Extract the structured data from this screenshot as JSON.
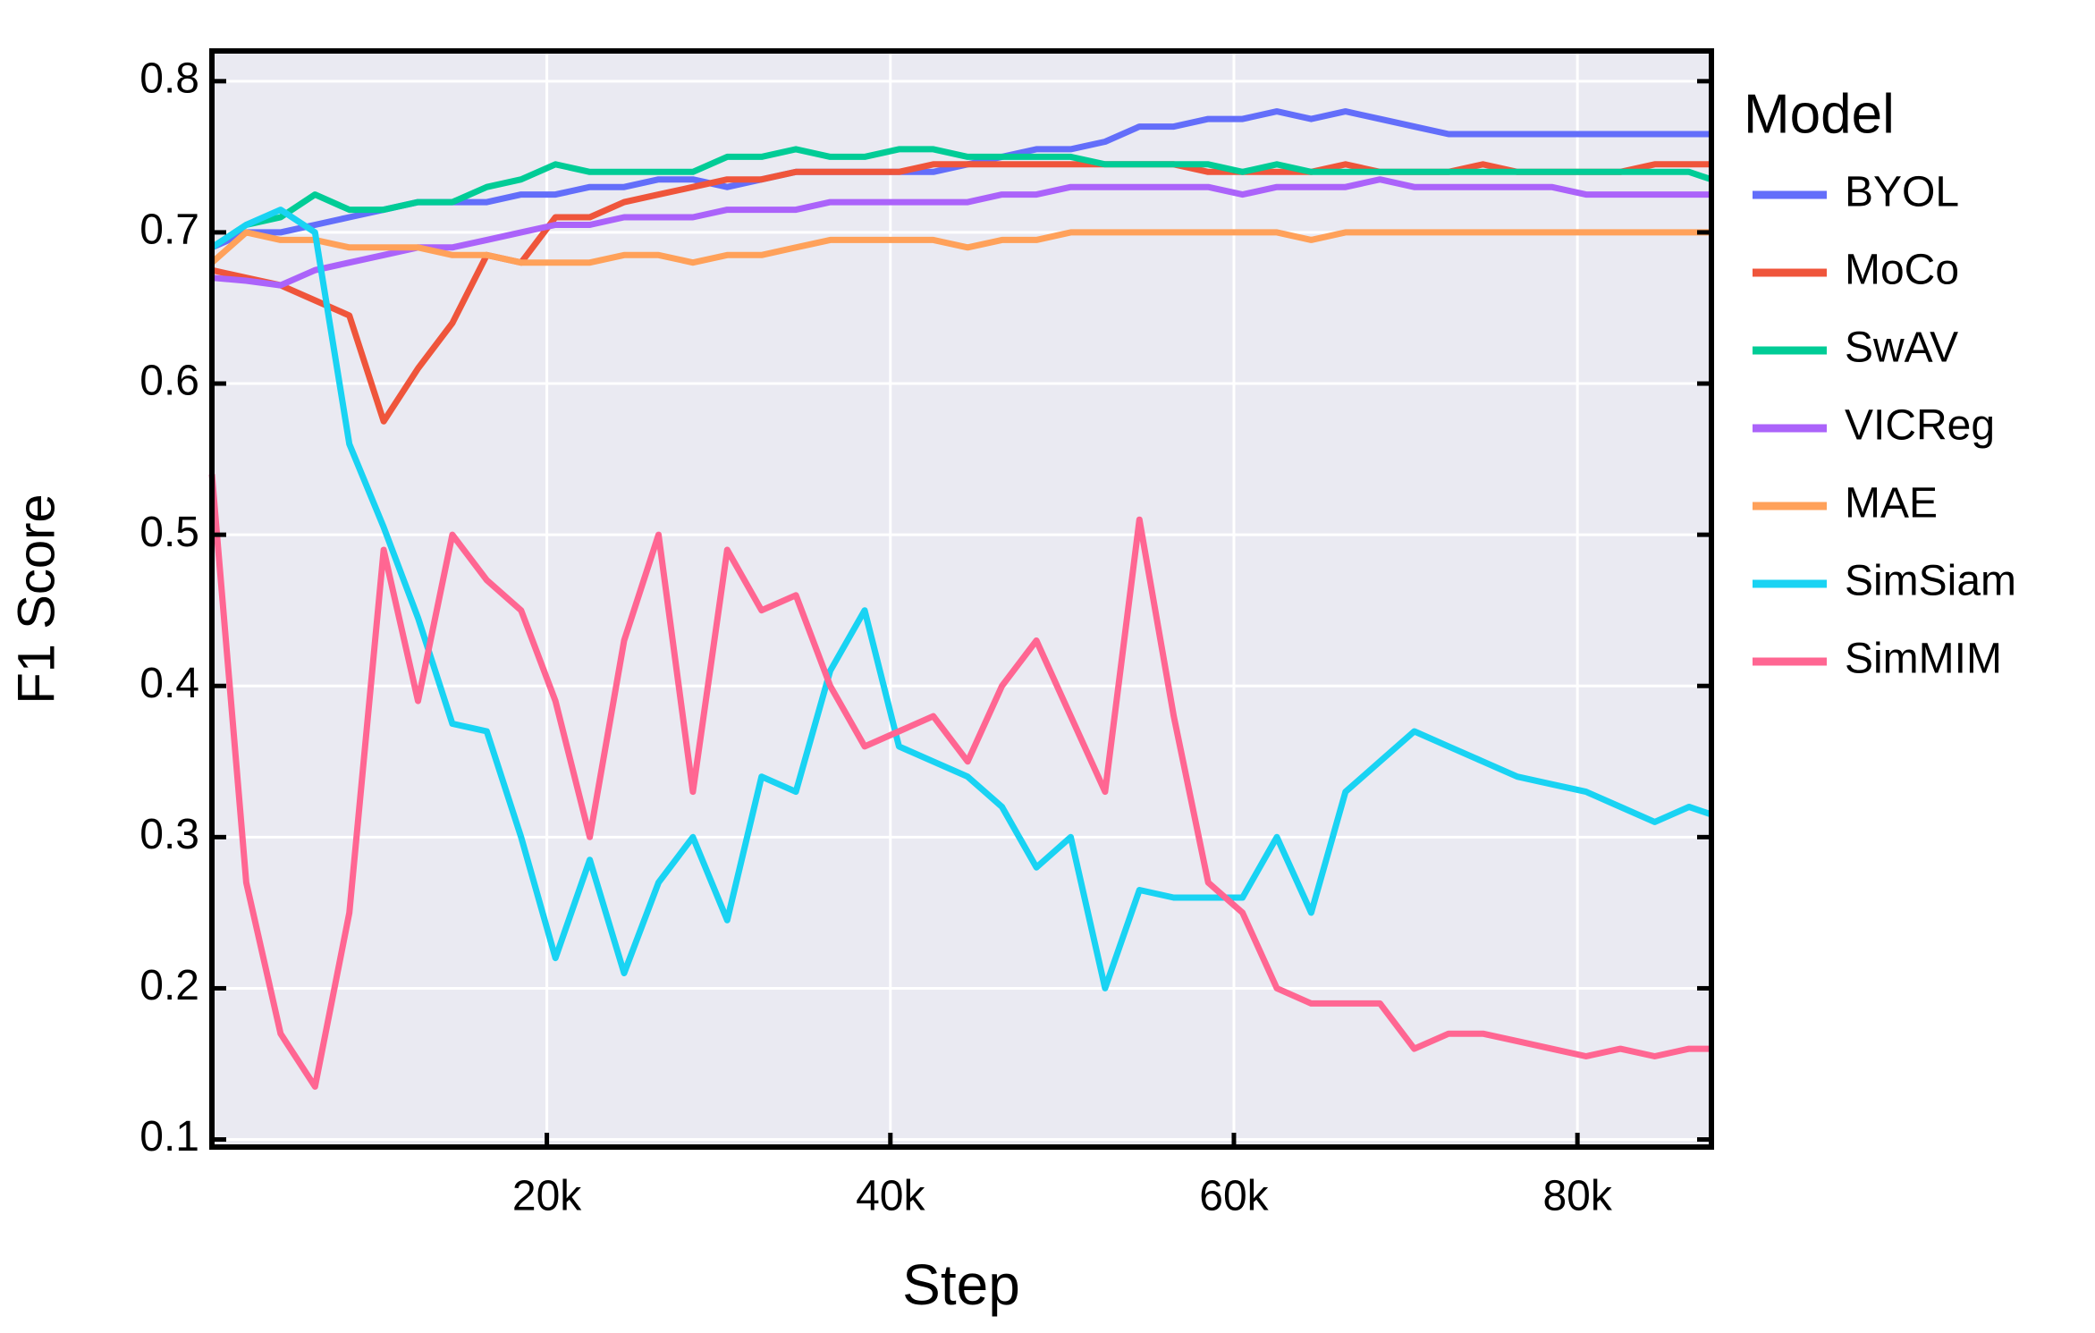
{
  "chart_data": {
    "type": "line",
    "xlabel": "Step",
    "ylabel": "F1 Score",
    "legend_title": "Model",
    "legend": "right",
    "grid": true,
    "xlim": [
      500,
      87800
    ],
    "ylim": [
      0.095,
      0.82
    ],
    "xticks": [
      {
        "value": 20000,
        "label": "20k"
      },
      {
        "value": 40000,
        "label": "40k"
      },
      {
        "value": 60000,
        "label": "60k"
      },
      {
        "value": 80000,
        "label": "80k"
      }
    ],
    "yticks": [
      0.1,
      0.2,
      0.3,
      0.4,
      0.5,
      0.6,
      0.7,
      0.8
    ],
    "x": [
      500,
      2500,
      4500,
      6500,
      8500,
      10500,
      12500,
      14500,
      16500,
      18500,
      20500,
      22500,
      24500,
      26500,
      28500,
      30500,
      32500,
      34500,
      36500,
      38500,
      40500,
      42500,
      44500,
      46500,
      48500,
      50500,
      52500,
      54500,
      56500,
      58500,
      60500,
      62500,
      64500,
      66500,
      68500,
      70500,
      72500,
      74500,
      76500,
      78500,
      80500,
      82500,
      84500,
      86500,
      87800
    ],
    "series": [
      {
        "name": "BYOL",
        "color": "#636efa",
        "values": [
          0.69,
          0.7,
          0.7,
          0.705,
          0.71,
          0.715,
          0.72,
          0.72,
          0.72,
          0.725,
          0.725,
          0.73,
          0.73,
          0.735,
          0.735,
          0.73,
          0.735,
          0.74,
          0.74,
          0.74,
          0.74,
          0.74,
          0.745,
          0.75,
          0.755,
          0.755,
          0.76,
          0.77,
          0.77,
          0.775,
          0.775,
          0.78,
          0.775,
          0.78,
          0.775,
          0.77,
          0.765,
          0.765,
          0.765,
          0.765,
          0.765,
          0.765,
          0.765,
          0.765,
          0.765
        ]
      },
      {
        "name": "MoCo",
        "color": "#ef553b",
        "values": [
          0.675,
          0.67,
          0.665,
          0.655,
          0.645,
          0.575,
          0.61,
          0.64,
          0.685,
          0.68,
          0.71,
          0.71,
          0.72,
          0.725,
          0.73,
          0.735,
          0.735,
          0.74,
          0.74,
          0.74,
          0.74,
          0.745,
          0.745,
          0.745,
          0.745,
          0.745,
          0.745,
          0.745,
          0.745,
          0.74,
          0.74,
          0.74,
          0.74,
          0.745,
          0.74,
          0.74,
          0.74,
          0.745,
          0.74,
          0.74,
          0.74,
          0.74,
          0.745,
          0.745,
          0.745
        ]
      },
      {
        "name": "SwAV",
        "color": "#00cc96",
        "values": [
          0.69,
          0.705,
          0.71,
          0.725,
          0.715,
          0.715,
          0.72,
          0.72,
          0.73,
          0.735,
          0.745,
          0.74,
          0.74,
          0.74,
          0.74,
          0.75,
          0.75,
          0.755,
          0.75,
          0.75,
          0.755,
          0.755,
          0.75,
          0.75,
          0.75,
          0.75,
          0.745,
          0.745,
          0.745,
          0.745,
          0.74,
          0.745,
          0.74,
          0.74,
          0.74,
          0.74,
          0.74,
          0.74,
          0.74,
          0.74,
          0.74,
          0.74,
          0.74,
          0.74,
          0.735
        ]
      },
      {
        "name": "VICReg",
        "color": "#ab63fa",
        "values": [
          0.67,
          0.668,
          0.665,
          0.675,
          0.68,
          0.685,
          0.69,
          0.69,
          0.695,
          0.7,
          0.705,
          0.705,
          0.71,
          0.71,
          0.71,
          0.715,
          0.715,
          0.715,
          0.72,
          0.72,
          0.72,
          0.72,
          0.72,
          0.725,
          0.725,
          0.73,
          0.73,
          0.73,
          0.73,
          0.73,
          0.725,
          0.73,
          0.73,
          0.73,
          0.735,
          0.73,
          0.73,
          0.73,
          0.73,
          0.73,
          0.725,
          0.725,
          0.725,
          0.725,
          0.725
        ]
      },
      {
        "name": "MAE",
        "color": "#ffa15a",
        "values": [
          0.68,
          0.7,
          0.695,
          0.695,
          0.69,
          0.69,
          0.69,
          0.685,
          0.685,
          0.68,
          0.68,
          0.68,
          0.685,
          0.685,
          0.68,
          0.685,
          0.685,
          0.69,
          0.695,
          0.695,
          0.695,
          0.695,
          0.69,
          0.695,
          0.695,
          0.7,
          0.7,
          0.7,
          0.7,
          0.7,
          0.7,
          0.7,
          0.695,
          0.7,
          0.7,
          0.7,
          0.7,
          0.7,
          0.7,
          0.7,
          0.7,
          0.7,
          0.7,
          0.7,
          0.7
        ]
      },
      {
        "name": "SimSiam",
        "color": "#19d3f3",
        "values": [
          0.69,
          0.705,
          0.715,
          0.7,
          0.56,
          0.505,
          0.445,
          0.375,
          0.37,
          0.3,
          0.22,
          0.285,
          0.21,
          0.27,
          0.3,
          0.245,
          0.34,
          0.33,
          0.41,
          0.45,
          0.36,
          0.35,
          0.34,
          0.32,
          0.28,
          0.3,
          0.2,
          0.265,
          0.26,
          0.26,
          0.26,
          0.3,
          0.25,
          0.33,
          0.35,
          0.37,
          0.36,
          0.35,
          0.34,
          0.335,
          0.33,
          0.32,
          0.31,
          0.32,
          0.315
        ]
      },
      {
        "name": "SimMIM",
        "color": "#ff6692",
        "values": [
          0.54,
          0.27,
          0.17,
          0.135,
          0.25,
          0.49,
          0.39,
          0.5,
          0.47,
          0.45,
          0.39,
          0.3,
          0.43,
          0.5,
          0.33,
          0.49,
          0.45,
          0.46,
          0.4,
          0.36,
          0.37,
          0.38,
          0.35,
          0.4,
          0.43,
          0.38,
          0.33,
          0.51,
          0.38,
          0.27,
          0.25,
          0.2,
          0.19,
          0.19,
          0.19,
          0.16,
          0.17,
          0.17,
          0.165,
          0.16,
          0.155,
          0.16,
          0.155,
          0.16,
          0.16
        ]
      }
    ]
  }
}
